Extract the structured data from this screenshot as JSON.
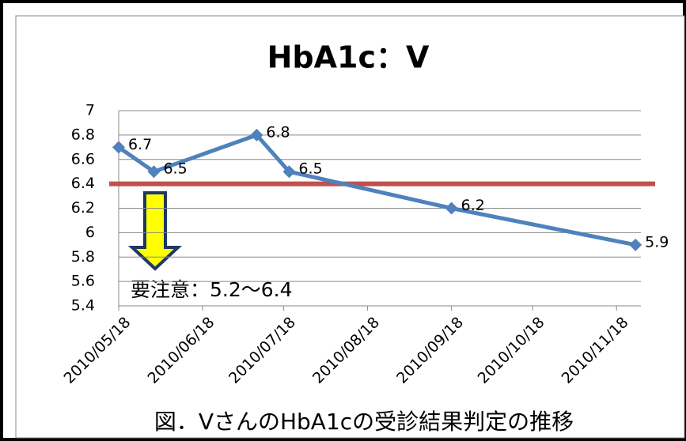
{
  "chart_data": {
    "type": "line",
    "title": "HbA1c：V",
    "x": [
      "2010/05/18",
      "2010/05/31",
      "2010/07/08",
      "2010/07/20",
      "2010/09/18",
      "2010/11/25"
    ],
    "series": [
      {
        "name": "V",
        "color": "#4f81bd",
        "values": [
          6.7,
          6.5,
          6.8,
          6.5,
          6.2,
          5.9
        ]
      }
    ],
    "xlim": [
      "2010/05/18",
      "2010/11/27"
    ],
    "xticks": [
      "2010/05/18",
      "2010/06/18",
      "2010/07/18",
      "2010/08/18",
      "2010/09/18",
      "2010/10/18",
      "2010/11/18"
    ],
    "ylim": [
      5.4,
      7
    ],
    "yticks": [
      5.4,
      5.6,
      5.8,
      6,
      6.2,
      6.4,
      6.6,
      6.8,
      7
    ],
    "grid": true,
    "threshold": {
      "value": 6.4,
      "color": "#c0504d"
    },
    "annotation": "要注意：5.2〜6.4",
    "caption": "図．VさんのHbA1cの受診結果判定の推移"
  }
}
